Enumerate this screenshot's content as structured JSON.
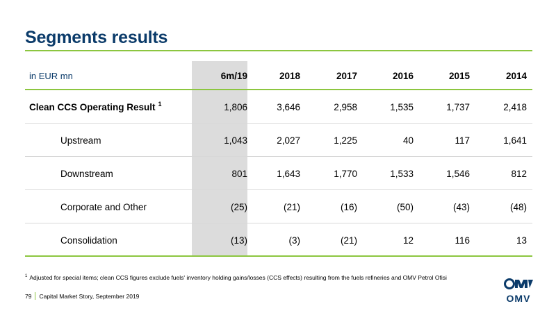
{
  "title": "Segments results",
  "table": {
    "unit_label": "in EUR mn",
    "columns": [
      "6m/19",
      "2018",
      "2017",
      "2016",
      "2015",
      "2014"
    ],
    "rows": [
      {
        "label": "Clean CCS Operating Result",
        "footnote_mark": "1",
        "values": [
          "1,806",
          "3,646",
          "2,958",
          "1,535",
          "1,737",
          "2,418"
        ]
      },
      {
        "label": "Upstream",
        "values": [
          "1,043",
          "2,027",
          "1,225",
          "40",
          "117",
          "1,641"
        ]
      },
      {
        "label": "Downstream",
        "values": [
          "801",
          "1,643",
          "1,770",
          "1,533",
          "1,546",
          "812"
        ]
      },
      {
        "label": "Corporate and Other",
        "values": [
          "(25)",
          "(21)",
          "(16)",
          "(50)",
          "(43)",
          "(48)"
        ]
      },
      {
        "label": "Consolidation",
        "values": [
          "(13)",
          "(3)",
          "(21)",
          "12",
          "116",
          "13"
        ]
      }
    ]
  },
  "footnote": {
    "mark": "1",
    "text": "Adjusted for special items; clean CCS figures exclude fuels' inventory holding gains/losses (CCS effects) resulting from the fuels refineries and OMV Petrol Ofisi"
  },
  "footer": {
    "page_number": "79",
    "caption": "Capital Market Story, September 2019"
  },
  "logo": {
    "text": "OMV",
    "name": "omv-logo"
  },
  "colors": {
    "title": "#0b3b6a",
    "accent": "#8cc63f",
    "highlight_column": "#dcdcdc"
  }
}
